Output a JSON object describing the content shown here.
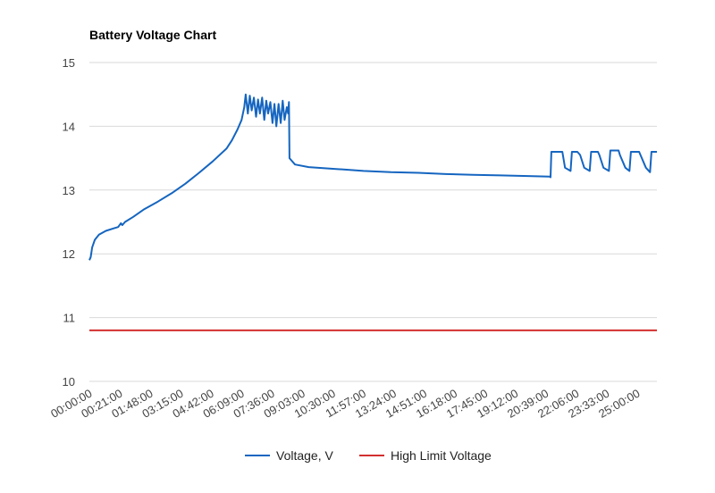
{
  "chart_data": {
    "type": "line",
    "title": "Battery Voltage Chart",
    "xlabel": "",
    "ylabel": "",
    "ylim": [
      10,
      15
    ],
    "y_ticks": [
      "10",
      "11",
      "12",
      "13",
      "14",
      "15"
    ],
    "x_ticks": [
      "00:00:00",
      "00:21:00",
      "01:48:00",
      "03:15:00",
      "04:42:00",
      "06:09:00",
      "07:36:00",
      "09:03:00",
      "10:30:00",
      "11:57:00",
      "13:24:00",
      "14:51:00",
      "16:18:00",
      "17:45:00",
      "19:12:00",
      "20:39:00",
      "22:06:00",
      "23:33:00",
      "25:00:00"
    ],
    "grid": true,
    "legend_position": "bottom",
    "series": [
      {
        "name": "Voltage, V",
        "color": "#1565c0",
        "points": [
          [
            0.0,
            11.9
          ],
          [
            0.05,
            11.95
          ],
          [
            0.1,
            12.1
          ],
          [
            0.2,
            12.22
          ],
          [
            0.35,
            12.3
          ],
          [
            0.6,
            12.36
          ],
          [
            0.9,
            12.4
          ],
          [
            1.05,
            12.42
          ],
          [
            1.15,
            12.48
          ],
          [
            1.2,
            12.45
          ],
          [
            1.3,
            12.5
          ],
          [
            1.6,
            12.58
          ],
          [
            2.0,
            12.7
          ],
          [
            2.5,
            12.82
          ],
          [
            3.0,
            12.95
          ],
          [
            3.5,
            13.1
          ],
          [
            4.0,
            13.27
          ],
          [
            4.5,
            13.45
          ],
          [
            5.0,
            13.65
          ],
          [
            5.2,
            13.78
          ],
          [
            5.4,
            13.95
          ],
          [
            5.55,
            14.1
          ],
          [
            5.65,
            14.3
          ],
          [
            5.7,
            14.5
          ],
          [
            5.78,
            14.2
          ],
          [
            5.85,
            14.48
          ],
          [
            5.92,
            14.25
          ],
          [
            6.0,
            14.45
          ],
          [
            6.08,
            14.15
          ],
          [
            6.15,
            14.42
          ],
          [
            6.22,
            14.2
          ],
          [
            6.3,
            14.45
          ],
          [
            6.38,
            14.1
          ],
          [
            6.45,
            14.4
          ],
          [
            6.52,
            14.2
          ],
          [
            6.6,
            14.38
          ],
          [
            6.68,
            14.05
          ],
          [
            6.75,
            14.35
          ],
          [
            6.82,
            14.0
          ],
          [
            6.9,
            14.35
          ],
          [
            6.98,
            14.05
          ],
          [
            7.05,
            14.4
          ],
          [
            7.12,
            14.1
          ],
          [
            7.2,
            14.3
          ],
          [
            7.25,
            14.2
          ],
          [
            7.28,
            14.38
          ],
          [
            7.3,
            13.5
          ],
          [
            7.5,
            13.4
          ],
          [
            8.0,
            13.36
          ],
          [
            9.0,
            13.33
          ],
          [
            10.0,
            13.3
          ],
          [
            11.0,
            13.28
          ],
          [
            12.0,
            13.27
          ],
          [
            13.0,
            13.25
          ],
          [
            14.0,
            13.24
          ],
          [
            15.0,
            13.23
          ],
          [
            16.0,
            13.22
          ],
          [
            16.8,
            13.21
          ],
          [
            16.82,
            13.2
          ],
          [
            16.85,
            13.6
          ],
          [
            17.1,
            13.6
          ],
          [
            17.25,
            13.6
          ],
          [
            17.35,
            13.35
          ],
          [
            17.55,
            13.3
          ],
          [
            17.6,
            13.6
          ],
          [
            17.8,
            13.6
          ],
          [
            17.9,
            13.55
          ],
          [
            18.05,
            13.35
          ],
          [
            18.25,
            13.3
          ],
          [
            18.3,
            13.6
          ],
          [
            18.55,
            13.6
          ],
          [
            18.6,
            13.55
          ],
          [
            18.75,
            13.35
          ],
          [
            18.95,
            13.3
          ],
          [
            19.0,
            13.62
          ],
          [
            19.3,
            13.62
          ],
          [
            19.35,
            13.55
          ],
          [
            19.55,
            13.35
          ],
          [
            19.7,
            13.3
          ],
          [
            19.75,
            13.6
          ],
          [
            20.05,
            13.6
          ],
          [
            20.1,
            13.55
          ],
          [
            20.3,
            13.35
          ],
          [
            20.45,
            13.28
          ],
          [
            20.5,
            13.6
          ],
          [
            20.7,
            13.6
          ]
        ]
      },
      {
        "name": "High Limit Voltage",
        "color": "#d32f2f",
        "points": [
          [
            0.0,
            10.8
          ],
          [
            20.7,
            10.8
          ]
        ]
      }
    ]
  }
}
